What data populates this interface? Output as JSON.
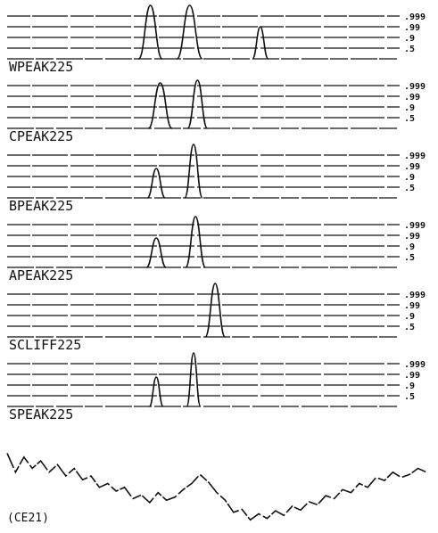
{
  "chart_data": {
    "type": "line",
    "level_labels": [
      ".999",
      ".99",
      ".9",
      ".5"
    ],
    "x_range": [
      0,
      1
    ],
    "panels": [
      {
        "label": "WPEAK225",
        "peaks": [
          {
            "x": 0.365,
            "height": 1.0,
            "width": 0.06
          },
          {
            "x": 0.465,
            "height": 1.0,
            "width": 0.065
          },
          {
            "x": 0.645,
            "height": 0.6,
            "width": 0.04
          }
        ]
      },
      {
        "label": "CPEAK225",
        "peaks": [
          {
            "x": 0.39,
            "height": 0.85,
            "width": 0.06
          },
          {
            "x": 0.485,
            "height": 0.9,
            "width": 0.05
          }
        ]
      },
      {
        "label": "BPEAK225",
        "peaks": [
          {
            "x": 0.38,
            "height": 0.55,
            "width": 0.045
          },
          {
            "x": 0.475,
            "height": 1.0,
            "width": 0.045
          }
        ]
      },
      {
        "label": "APEAK225",
        "peaks": [
          {
            "x": 0.38,
            "height": 0.55,
            "width": 0.05
          },
          {
            "x": 0.48,
            "height": 0.95,
            "width": 0.05
          }
        ]
      },
      {
        "label": "SCLIFF225",
        "peaks": [
          {
            "x": 0.53,
            "height": 1.0,
            "width": 0.05
          }
        ]
      },
      {
        "label": "SPEAK225",
        "peaks": [
          {
            "x": 0.38,
            "height": 0.55,
            "width": 0.035
          },
          {
            "x": 0.475,
            "height": 1.0,
            "width": 0.035
          }
        ]
      }
    ],
    "signal": {
      "caption": "(CE21)",
      "points": [
        [
          0.0,
          0.1
        ],
        [
          0.02,
          0.35
        ],
        [
          0.04,
          0.15
        ],
        [
          0.06,
          0.3
        ],
        [
          0.08,
          0.2
        ],
        [
          0.1,
          0.35
        ],
        [
          0.12,
          0.25
        ],
        [
          0.14,
          0.4
        ],
        [
          0.16,
          0.3
        ],
        [
          0.18,
          0.45
        ],
        [
          0.2,
          0.4
        ],
        [
          0.22,
          0.55
        ],
        [
          0.24,
          0.5
        ],
        [
          0.26,
          0.6
        ],
        [
          0.28,
          0.55
        ],
        [
          0.3,
          0.7
        ],
        [
          0.32,
          0.65
        ],
        [
          0.34,
          0.75
        ],
        [
          0.36,
          0.62
        ],
        [
          0.38,
          0.72
        ],
        [
          0.4,
          0.68
        ],
        [
          0.42,
          0.58
        ],
        [
          0.44,
          0.5
        ],
        [
          0.46,
          0.38
        ],
        [
          0.48,
          0.48
        ],
        [
          0.5,
          0.62
        ],
        [
          0.52,
          0.72
        ],
        [
          0.54,
          0.88
        ],
        [
          0.56,
          0.84
        ],
        [
          0.58,
          0.98
        ],
        [
          0.6,
          0.9
        ],
        [
          0.62,
          0.96
        ],
        [
          0.64,
          0.86
        ],
        [
          0.66,
          0.92
        ],
        [
          0.68,
          0.8
        ],
        [
          0.7,
          0.85
        ],
        [
          0.72,
          0.74
        ],
        [
          0.74,
          0.78
        ],
        [
          0.76,
          0.66
        ],
        [
          0.78,
          0.7
        ],
        [
          0.8,
          0.58
        ],
        [
          0.82,
          0.62
        ],
        [
          0.84,
          0.5
        ],
        [
          0.86,
          0.55
        ],
        [
          0.88,
          0.42
        ],
        [
          0.9,
          0.46
        ],
        [
          0.92,
          0.35
        ],
        [
          0.94,
          0.42
        ],
        [
          0.96,
          0.38
        ],
        [
          0.98,
          0.3
        ],
        [
          1.0,
          0.35
        ]
      ]
    }
  }
}
